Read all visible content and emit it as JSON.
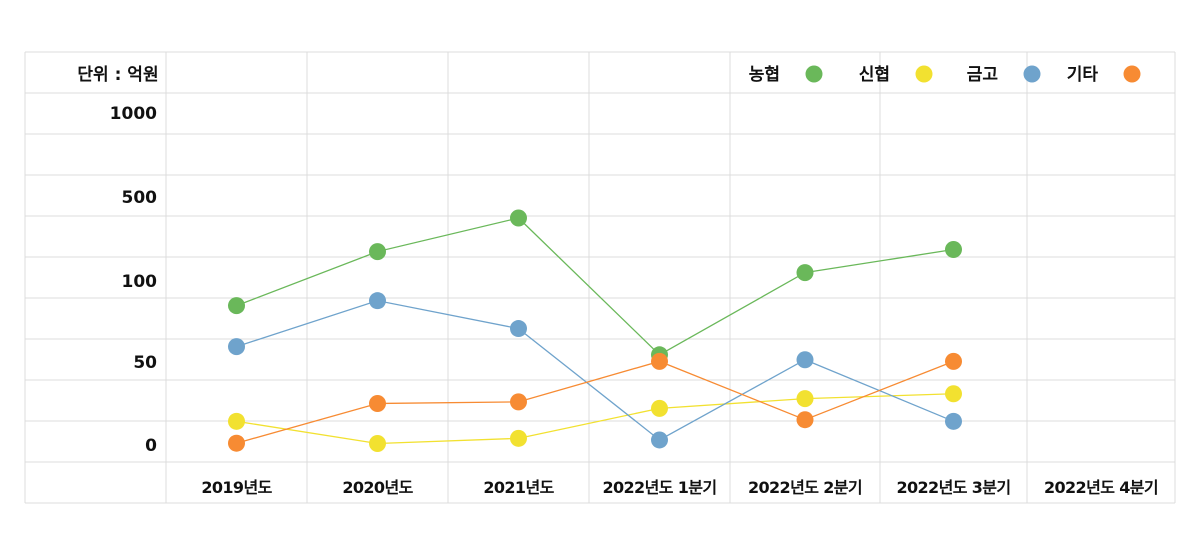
{
  "chart_data": {
    "type": "line",
    "unit_label": "단위 : 억원",
    "categories": [
      "2019년도",
      "2020년도",
      "2021년도",
      "2022년도 1분기",
      "2022년도 2분기",
      "2022년도 3분기",
      "2022년도 4분기"
    ],
    "y_tick_labels": [
      "1000",
      "500",
      "100",
      "50",
      "0"
    ],
    "series": [
      {
        "name": "농협",
        "color": "#6ab85a",
        "values": [
          85,
          240,
          400,
          55,
          140,
          250,
          null
        ]
      },
      {
        "name": "신협",
        "color": "#f2e130",
        "values": [
          14,
          0.3,
          3.5,
          22,
          28,
          31,
          null
        ]
      },
      {
        "name": "금고",
        "color": "#6fa3cc",
        "values": [
          60,
          88,
          71,
          2.5,
          52,
          14,
          null
        ]
      },
      {
        "name": "기타",
        "color": "#f78b33",
        "values": [
          0.5,
          25,
          26,
          51,
          15,
          51,
          null
        ]
      }
    ],
    "grid": true,
    "legend_position": "top-right"
  }
}
